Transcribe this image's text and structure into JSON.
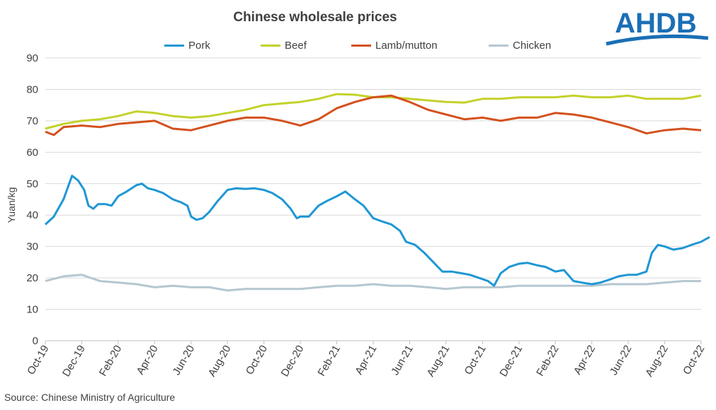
{
  "title": "Chinese wholesale prices",
  "source": "Source: Chinese Ministry of Agriculture",
  "logo_text": "AHDB",
  "colors": {
    "brand": "#1a6fb5",
    "grid": "#d9d9d9"
  },
  "chart_data": {
    "type": "line",
    "title": "Chinese wholesale prices",
    "ylabel": "Yuan/kg",
    "xlabel": "",
    "ylim": [
      0,
      90
    ],
    "yticks": [
      0,
      10,
      20,
      30,
      40,
      50,
      60,
      70,
      80,
      90
    ],
    "xlim": [
      "2019-10",
      "2022-10"
    ],
    "xticks": [
      "Oct-19",
      "Dec-19",
      "Feb-20",
      "Apr-20",
      "Jun-20",
      "Aug-20",
      "Oct-20",
      "Dec-20",
      "Feb-21",
      "Apr-21",
      "Jun-21",
      "Aug-21",
      "Oct-21",
      "Dec-21",
      "Feb-22",
      "Apr-22",
      "Jun-22",
      "Aug-22",
      "Oct-22"
    ],
    "x_unit": "month",
    "grid": "horizontal",
    "legend_position": "top",
    "series": [
      {
        "name": "Pork",
        "color": "#1f97d4",
        "points": [
          [
            "2019-10",
            37
          ],
          [
            "2019-10-15",
            39.5
          ],
          [
            "2019-11",
            45
          ],
          [
            "2019-11-15",
            52.5
          ],
          [
            "2019-11-25",
            51
          ],
          [
            "2019-12-05",
            48
          ],
          [
            "2019-12-12",
            43
          ],
          [
            "2019-12-20",
            42
          ],
          [
            "2019-12-28",
            43.5
          ],
          [
            "2020-01-10",
            43.5
          ],
          [
            "2020-01-20",
            43
          ],
          [
            "2020-02",
            46
          ],
          [
            "2020-02-15",
            47.5
          ],
          [
            "2020-03",
            49.5
          ],
          [
            "2020-03-10",
            50
          ],
          [
            "2020-03-20",
            48.5
          ],
          [
            "2020-04",
            48
          ],
          [
            "2020-04-15",
            47
          ],
          [
            "2020-05",
            45
          ],
          [
            "2020-05-15",
            44
          ],
          [
            "2020-05-25",
            43
          ],
          [
            "2020-06",
            39.5
          ],
          [
            "2020-06-10",
            38.5
          ],
          [
            "2020-06-20",
            39
          ],
          [
            "2020-07",
            41
          ],
          [
            "2020-07-15",
            44.5
          ],
          [
            "2020-08",
            48
          ],
          [
            "2020-08-15",
            48.5
          ],
          [
            "2020-09",
            48.3
          ],
          [
            "2020-09-15",
            48.5
          ],
          [
            "2020-10",
            48
          ],
          [
            "2020-10-15",
            47
          ],
          [
            "2020-11",
            45
          ],
          [
            "2020-11-15",
            42
          ],
          [
            "2020-11-25",
            39
          ],
          [
            "2020-12",
            39.5
          ],
          [
            "2020-12-15",
            39.5
          ],
          [
            "2021-01",
            43
          ],
          [
            "2021-01-15",
            44.5
          ],
          [
            "2021-02",
            46
          ],
          [
            "2021-02-15",
            47.5
          ],
          [
            "2021-03",
            45
          ],
          [
            "2021-03-15",
            43
          ],
          [
            "2021-04",
            39
          ],
          [
            "2021-04-15",
            38
          ],
          [
            "2021-05",
            37
          ],
          [
            "2021-05-15",
            35
          ],
          [
            "2021-05-25",
            31.5
          ],
          [
            "2021-06-10",
            30.5
          ],
          [
            "2021-06-25",
            28
          ],
          [
            "2021-07-10",
            25
          ],
          [
            "2021-07-25",
            22
          ],
          [
            "2021-08-10",
            22
          ],
          [
            "2021-08-25",
            21.5
          ],
          [
            "2021-09-10",
            21
          ],
          [
            "2021-09-25",
            20
          ],
          [
            "2021-10-10",
            19
          ],
          [
            "2021-10-20",
            17.5
          ],
          [
            "2021-11",
            21.5
          ],
          [
            "2021-11-15",
            23.5
          ],
          [
            "2021-12",
            24.5
          ],
          [
            "2021-12-15",
            24.8
          ],
          [
            "2022-01",
            24
          ],
          [
            "2022-01-15",
            23.5
          ],
          [
            "2022-02",
            22
          ],
          [
            "2022-02-15",
            22.5
          ],
          [
            "2022-03",
            19
          ],
          [
            "2022-03-15",
            18.5
          ],
          [
            "2022-04",
            18
          ],
          [
            "2022-04-15",
            18.5
          ],
          [
            "2022-05",
            19.5
          ],
          [
            "2022-05-15",
            20.5
          ],
          [
            "2022-06",
            21
          ],
          [
            "2022-06-15",
            21
          ],
          [
            "2022-07",
            22
          ],
          [
            "2022-07-10",
            28
          ],
          [
            "2022-07-20",
            30.5
          ],
          [
            "2022-08",
            30
          ],
          [
            "2022-08-15",
            29
          ],
          [
            "2022-09",
            29.5
          ],
          [
            "2022-09-15",
            30.5
          ],
          [
            "2022-10",
            31.5
          ],
          [
            "2022-10-15",
            33
          ]
        ]
      },
      {
        "name": "Beef",
        "color": "#c3d22b",
        "points": [
          [
            "2019-10",
            67.5
          ],
          [
            "2019-11",
            69
          ],
          [
            "2019-12",
            70
          ],
          [
            "2020-01",
            70.5
          ],
          [
            "2020-02",
            71.5
          ],
          [
            "2020-03",
            73
          ],
          [
            "2020-04",
            72.5
          ],
          [
            "2020-05",
            71.5
          ],
          [
            "2020-06",
            71
          ],
          [
            "2020-07",
            71.5
          ],
          [
            "2020-08",
            72.5
          ],
          [
            "2020-09",
            73.5
          ],
          [
            "2020-10",
            75
          ],
          [
            "2020-11",
            75.5
          ],
          [
            "2020-12",
            76
          ],
          [
            "2021-01",
            77
          ],
          [
            "2021-02",
            78.5
          ],
          [
            "2021-03",
            78.3
          ],
          [
            "2021-04",
            77.5
          ],
          [
            "2021-05",
            77.5
          ],
          [
            "2021-06",
            77
          ],
          [
            "2021-07",
            76.5
          ],
          [
            "2021-08",
            76
          ],
          [
            "2021-09",
            75.8
          ],
          [
            "2021-10",
            77
          ],
          [
            "2021-11",
            77
          ],
          [
            "2021-12",
            77.5
          ],
          [
            "2022-01",
            77.5
          ],
          [
            "2022-02",
            77.5
          ],
          [
            "2022-03",
            78
          ],
          [
            "2022-04",
            77.5
          ],
          [
            "2022-05",
            77.5
          ],
          [
            "2022-06",
            78
          ],
          [
            "2022-07",
            77
          ],
          [
            "2022-08",
            77
          ],
          [
            "2022-09",
            77
          ],
          [
            "2022-10",
            78
          ]
        ]
      },
      {
        "name": "Lamb/mutton",
        "color": "#d4511e",
        "points": [
          [
            "2019-10",
            66.5
          ],
          [
            "2019-10-15",
            65.5
          ],
          [
            "2019-11",
            68
          ],
          [
            "2019-12",
            68.5
          ],
          [
            "2020-01",
            68
          ],
          [
            "2020-02",
            69
          ],
          [
            "2020-03",
            69.5
          ],
          [
            "2020-04",
            70
          ],
          [
            "2020-05",
            67.5
          ],
          [
            "2020-06",
            67
          ],
          [
            "2020-07",
            68.5
          ],
          [
            "2020-08",
            70
          ],
          [
            "2020-09",
            71
          ],
          [
            "2020-10",
            71
          ],
          [
            "2020-11",
            70
          ],
          [
            "2020-12",
            68.5
          ],
          [
            "2021-01",
            70.5
          ],
          [
            "2021-02",
            74
          ],
          [
            "2021-03",
            76
          ],
          [
            "2021-04",
            77.5
          ],
          [
            "2021-05",
            78
          ],
          [
            "2021-06",
            76
          ],
          [
            "2021-07",
            73.5
          ],
          [
            "2021-08",
            72
          ],
          [
            "2021-09",
            70.5
          ],
          [
            "2021-10",
            71
          ],
          [
            "2021-11",
            70
          ],
          [
            "2021-12",
            71
          ],
          [
            "2022-01",
            71
          ],
          [
            "2022-02",
            72.5
          ],
          [
            "2022-03",
            72
          ],
          [
            "2022-04",
            71
          ],
          [
            "2022-05",
            69.5
          ],
          [
            "2022-06",
            68
          ],
          [
            "2022-07",
            66
          ],
          [
            "2022-08",
            67
          ],
          [
            "2022-09",
            67.5
          ],
          [
            "2022-10",
            67
          ]
        ]
      },
      {
        "name": "Chicken",
        "color": "#b4c7d0",
        "points": [
          [
            "2019-10",
            19
          ],
          [
            "2019-11",
            20.5
          ],
          [
            "2019-12",
            21
          ],
          [
            "2020-01",
            19
          ],
          [
            "2020-02",
            18.5
          ],
          [
            "2020-03",
            18
          ],
          [
            "2020-04",
            17
          ],
          [
            "2020-05",
            17.5
          ],
          [
            "2020-06",
            17
          ],
          [
            "2020-07",
            17
          ],
          [
            "2020-08",
            16
          ],
          [
            "2020-09",
            16.5
          ],
          [
            "2020-10",
            16.5
          ],
          [
            "2020-11",
            16.5
          ],
          [
            "2020-12",
            16.5
          ],
          [
            "2021-01",
            17
          ],
          [
            "2021-02",
            17.5
          ],
          [
            "2021-03",
            17.5
          ],
          [
            "2021-04",
            18
          ],
          [
            "2021-05",
            17.5
          ],
          [
            "2021-06",
            17.5
          ],
          [
            "2021-07",
            17
          ],
          [
            "2021-08",
            16.5
          ],
          [
            "2021-09",
            17
          ],
          [
            "2021-10",
            17
          ],
          [
            "2021-11",
            17
          ],
          [
            "2021-12",
            17.5
          ],
          [
            "2022-01",
            17.5
          ],
          [
            "2022-02",
            17.5
          ],
          [
            "2022-03",
            17.5
          ],
          [
            "2022-04",
            17.5
          ],
          [
            "2022-05",
            18
          ],
          [
            "2022-06",
            18
          ],
          [
            "2022-07",
            18
          ],
          [
            "2022-08",
            18.5
          ],
          [
            "2022-09",
            19
          ],
          [
            "2022-10",
            19
          ]
        ]
      }
    ]
  }
}
